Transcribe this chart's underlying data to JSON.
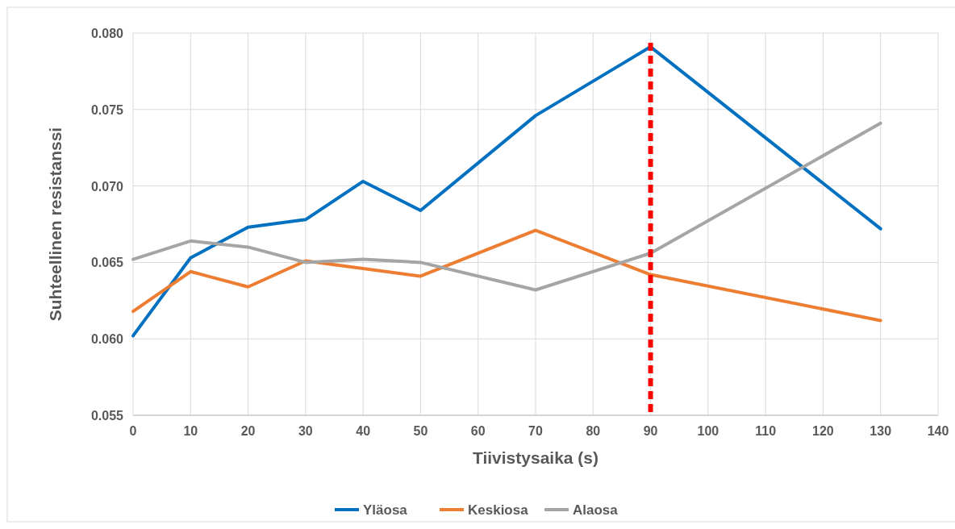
{
  "chart_data": {
    "type": "line",
    "xlabel": "Tiivistysaika (s)",
    "ylabel": "Suhteellinen resistanssi",
    "x": [
      0,
      10,
      20,
      30,
      40,
      50,
      70,
      90,
      130
    ],
    "series": [
      {
        "name": "Yläosa",
        "color": "#0070c0",
        "values": [
          0.0602,
          0.0653,
          0.0673,
          0.0678,
          0.0703,
          0.0684,
          0.0746,
          0.0791,
          0.0672
        ]
      },
      {
        "name": "Keskiosa",
        "color": "#ed7d31",
        "values": [
          0.0618,
          0.0644,
          0.0634,
          0.0651,
          0.0646,
          0.0641,
          0.0671,
          0.0642,
          0.0612
        ]
      },
      {
        "name": "Alaosa",
        "color": "#a5a5a5",
        "values": [
          0.0652,
          0.0664,
          0.066,
          0.065,
          0.0652,
          0.065,
          0.0632,
          0.0656,
          0.0741
        ]
      }
    ],
    "xlim": [
      0,
      140
    ],
    "xticks": [
      0,
      10,
      20,
      30,
      40,
      50,
      60,
      70,
      80,
      90,
      100,
      110,
      120,
      130,
      140
    ],
    "ylim": [
      0.055,
      0.08
    ],
    "yticks": [
      {
        "value": 0.055,
        "label": "0.055"
      },
      {
        "value": 0.06,
        "label": "0.060"
      },
      {
        "value": 0.065,
        "label": "0.065"
      },
      {
        "value": 0.07,
        "label": "0.070"
      },
      {
        "value": 0.075,
        "label": "0.075"
      },
      {
        "value": 0.08,
        "label": "0.080"
      }
    ],
    "ref_lines": [
      {
        "axis": "x",
        "value": 90,
        "color": "#ff0000",
        "line_style": "dashed"
      }
    ],
    "grid": true,
    "legend": "bottom",
    "marker": "none",
    "line_style": "solid"
  }
}
